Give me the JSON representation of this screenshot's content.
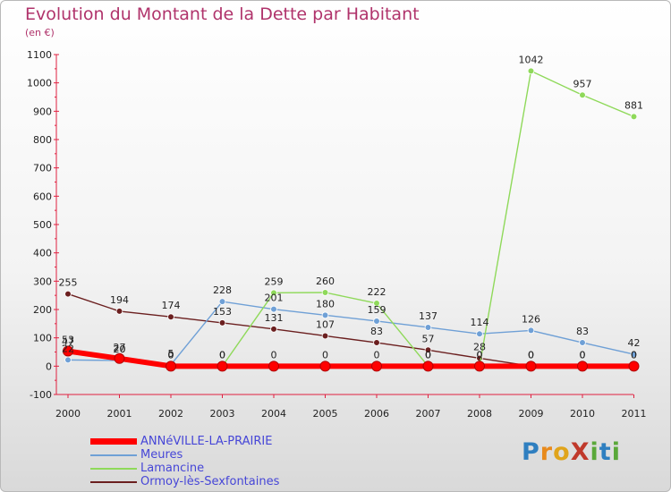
{
  "title": "Evolution du Montant de la Dette par Habitant",
  "subtitle": "(en €)",
  "logo_text": "ProXiti",
  "chart_data": {
    "type": "line",
    "title": "Evolution du Montant de la Dette par Habitant",
    "subtitle": "(en €)",
    "x": [
      "2000",
      "2001",
      "2002",
      "2003",
      "2004",
      "2005",
      "2006",
      "2007",
      "2008",
      "2009",
      "2010",
      "2011"
    ],
    "yticks": [
      "-100",
      "0",
      "100",
      "200",
      "300",
      "400",
      "500",
      "600",
      "700",
      "800",
      "900",
      "1000",
      "1100"
    ],
    "ylim": [
      -100,
      1100
    ],
    "grid": false,
    "legend_position": "bottom-left",
    "series": [
      {
        "name": "ANNéVILLE-LA-PRAIRIE",
        "color": "#ff0000",
        "values": [
          53,
          27,
          0,
          0,
          0,
          0,
          0,
          0,
          0,
          0,
          0,
          0
        ],
        "labels": [
          "53",
          "27",
          "0",
          "0",
          "0",
          "0",
          "0",
          "0",
          "0",
          "0",
          "0",
          "0"
        ]
      },
      {
        "name": "Meures",
        "color": "#6fa0d6",
        "values": [
          22,
          20,
          5,
          228,
          201,
          180,
          159,
          137,
          114,
          126,
          83,
          42
        ],
        "labels": [
          "22",
          "20",
          "5",
          "228",
          "201",
          "180",
          "159",
          "137",
          "114",
          "126",
          "83",
          "42"
        ]
      },
      {
        "name": "Lamancine",
        "color": "#8fd95a",
        "values": [
          47,
          20,
          0,
          0,
          259,
          260,
          222,
          0,
          0,
          1042,
          957,
          881
        ],
        "labels": [
          "47",
          "20",
          "0",
          "0",
          "259",
          "260",
          "222",
          "0",
          "0",
          "1042",
          "957",
          "881"
        ]
      },
      {
        "name": "Ormoy-lès-Sexfontaines",
        "color": "#6b1f1f",
        "values": [
          255,
          194,
          174,
          153,
          131,
          107,
          83,
          57,
          28,
          0,
          0,
          0
        ],
        "labels": [
          "255",
          "194",
          "174",
          "153",
          "131",
          "107",
          "83",
          "57",
          "28",
          "0",
          "0",
          "0"
        ]
      }
    ]
  }
}
